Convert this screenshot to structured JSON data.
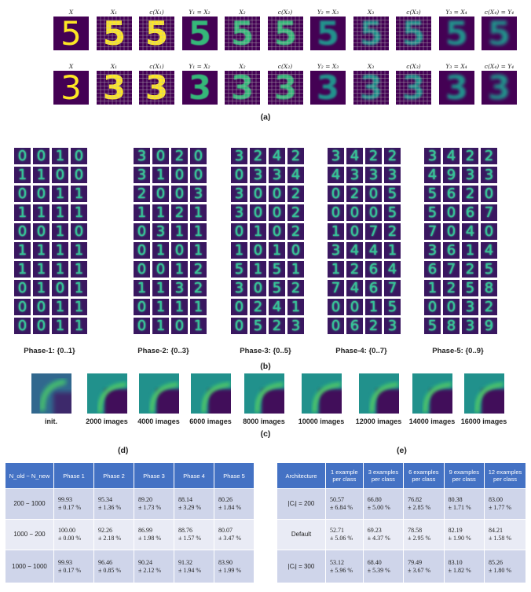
{
  "panel_a": {
    "caption": "(a)",
    "titles": [
      "X",
      "X₁",
      "c(X₁)",
      "Y₁ = X₂",
      "X₂",
      "c(X₂)",
      "Y₂ = X₃",
      "X₃",
      "c(X₃)",
      "Y₃ = X₄",
      "c(X₄) = Y₄"
    ],
    "rows": [
      {
        "digit": "5",
        "column_titles": [
          "X",
          "X₁",
          "c(X₁)",
          "Y₁ = X₂",
          "X₂",
          "c(X₂)",
          "Y₂ = X₃",
          "X₃",
          "c(X₃)",
          "Y₃ = X₄",
          "c(X₄) = Y₄"
        ]
      },
      {
        "digit": "3",
        "column_titles": [
          "X",
          "X₁",
          "c(X₁)",
          "Y₁ = X₂",
          "X₂",
          "c(X₂)",
          "Y₂ = X₃",
          "X₃",
          "c(X₃)",
          "Y₃ = X₄",
          "c(X₄) = Y₄"
        ]
      }
    ]
  },
  "panel_b": {
    "caption": "(b)",
    "phases": [
      {
        "label": "Phase-1: {0..1}",
        "digits": [
          "0",
          "0",
          "1",
          "0",
          "1",
          "1",
          "0",
          "0",
          "0",
          "0",
          "1",
          "1",
          "1",
          "1",
          "1",
          "1",
          "0",
          "0",
          "1",
          "0",
          "1",
          "1",
          "1",
          "1",
          "1",
          "1",
          "1",
          "1",
          "0",
          "1",
          "0",
          "1",
          "0",
          "0",
          "1",
          "1",
          "0",
          "0",
          "1",
          "1"
        ]
      },
      {
        "label": "Phase-2: {0..3}",
        "digits": [
          "3",
          "0",
          "2",
          "0",
          "3",
          "1",
          "0",
          "0",
          "2",
          "0",
          "0",
          "3",
          "1",
          "1",
          "2",
          "1",
          "0",
          "3",
          "1",
          "1",
          "0",
          "1",
          "0",
          "1",
          "0",
          "0",
          "1",
          "2",
          "1",
          "1",
          "3",
          "2",
          "0",
          "1",
          "1",
          "1",
          "0",
          "1",
          "0",
          "1"
        ]
      },
      {
        "label": "Phase-3: {0..5}",
        "digits": [
          "3",
          "2",
          "4",
          "2",
          "0",
          "3",
          "3",
          "4",
          "3",
          "0",
          "0",
          "2",
          "3",
          "0",
          "0",
          "2",
          "0",
          "1",
          "0",
          "2",
          "1",
          "0",
          "1",
          "0",
          "5",
          "1",
          "5",
          "1",
          "3",
          "0",
          "5",
          "2",
          "0",
          "2",
          "4",
          "1",
          "0",
          "5",
          "2",
          "3"
        ]
      },
      {
        "label": "Phase-4: {0..7}",
        "digits": [
          "3",
          "4",
          "2",
          "2",
          "4",
          "3",
          "3",
          "3",
          "0",
          "2",
          "0",
          "5",
          "0",
          "0",
          "0",
          "5",
          "1",
          "0",
          "7",
          "2",
          "3",
          "4",
          "4",
          "1",
          "1",
          "2",
          "6",
          "4",
          "7",
          "4",
          "6",
          "7",
          "0",
          "0",
          "1",
          "5",
          "0",
          "6",
          "2",
          "3"
        ]
      },
      {
        "label": "Phase-5: {0..9}",
        "digits": [
          "3",
          "4",
          "2",
          "2",
          "4",
          "9",
          "3",
          "3",
          "5",
          "6",
          "2",
          "0",
          "5",
          "0",
          "6",
          "7",
          "7",
          "0",
          "4",
          "0",
          "3",
          "6",
          "1",
          "4",
          "6",
          "7",
          "2",
          "5",
          "1",
          "2",
          "5",
          "8",
          "0",
          "0",
          "3",
          "2",
          "5",
          "8",
          "3",
          "9"
        ]
      }
    ]
  },
  "panel_c": {
    "caption": "(c)",
    "labels": [
      "init.",
      "2000 images",
      "4000 images",
      "6000 images",
      "8000 images",
      "10000 images",
      "12000 images",
      "14000 images",
      "16000 images"
    ]
  },
  "table_d": {
    "caption": "(d)",
    "header": [
      "N_old − N_new",
      "Phase 1",
      "Phase 2",
      "Phase 3",
      "Phase 4",
      "Phase 5"
    ],
    "rows": [
      {
        "label": "200  − 1000",
        "cells": [
          [
            "99.93",
            "± 0.17 %"
          ],
          [
            "95.34",
            "± 1.36 %"
          ],
          [
            "89.20",
            "± 1.73 %"
          ],
          [
            "88.14",
            "± 3.29 %"
          ],
          [
            "80.26",
            "± 1.84 %"
          ]
        ]
      },
      {
        "label": "1000  − 200",
        "cells": [
          [
            "100.00",
            "± 0.00 %"
          ],
          [
            "92.26",
            "± 2.18 %"
          ],
          [
            "86.99",
            "± 1.98 %"
          ],
          [
            "88.76",
            "± 1.57 %"
          ],
          [
            "80.07",
            "± 3.47 %"
          ]
        ]
      },
      {
        "label": "1000  − 1000",
        "cells": [
          [
            "99.93",
            "± 0.17 %"
          ],
          [
            "96.46",
            "± 0.85 %"
          ],
          [
            "90.24",
            "± 2.12 %"
          ],
          [
            "91.32",
            "± 1.94 %"
          ],
          [
            "83.90",
            "± 1.99 %"
          ]
        ]
      }
    ]
  },
  "table_e": {
    "caption": "(e)",
    "header": [
      "Architecture",
      "1 example per class",
      "3 examples per class",
      "6 examples per class",
      "9 examples per class",
      "12 examples per class"
    ],
    "rows": [
      {
        "label": "|Cᵢ| = 200",
        "cells": [
          [
            "50.57",
            "± 6.84 %"
          ],
          [
            "66.80",
            "± 5.00 %"
          ],
          [
            "76.82",
            "± 2.85 %"
          ],
          [
            "80.38",
            "± 1.71 %"
          ],
          [
            "83.00",
            "± 1.77 %"
          ]
        ]
      },
      {
        "label": "Default",
        "cells": [
          [
            "52.71",
            "± 5.06 %"
          ],
          [
            "69.23",
            "± 4.37 %"
          ],
          [
            "78.58",
            "± 2.95 %"
          ],
          [
            "82.19",
            "± 1.90 %"
          ],
          [
            "84.21",
            "± 1.58 %"
          ]
        ]
      },
      {
        "label": "|Cᵢ| = 300",
        "cells": [
          [
            "53.12",
            "± 5.96 %"
          ],
          [
            "68.40",
            "± 5.39 %"
          ],
          [
            "79.49",
            "± 3.67 %"
          ],
          [
            "83.10",
            "± 1.82 %"
          ],
          [
            "85.26",
            "± 1.80 %"
          ]
        ]
      }
    ]
  },
  "colors": {
    "viridis_bg": "#440154",
    "viridis_mid": "#31688e",
    "viridis_teal": "#21918c",
    "viridis_green": "#35b779",
    "viridis_yellow": "#fde725",
    "table_header": "#4472c4",
    "table_row_dark": "#cfd5ea",
    "table_row_light": "#e9ebf5"
  }
}
